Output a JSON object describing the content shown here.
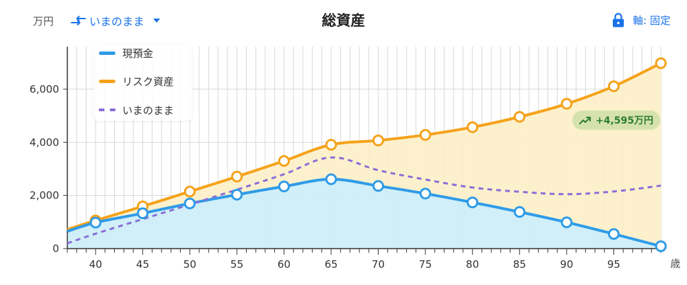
{
  "header": {
    "unit": "万円",
    "scenario_label": "いまのまま",
    "title": "総資産",
    "axis_label": "軸: 固定"
  },
  "badge": {
    "text": "+4,595万円"
  },
  "colors": {
    "cash": "#2f9be8",
    "cash_fill": "#cdeefa",
    "risk": "#f5a21b",
    "risk_fill": "#fdf0c8",
    "baseline": "#8a6ed8",
    "grid": "#d8d8d8",
    "accent": "#1a73e8",
    "badge_text": "#2e7d32"
  },
  "chart_data": {
    "type": "area",
    "xlabel": "歳",
    "ylabel": "",
    "xlim": [
      37,
      100
    ],
    "ylim": [
      0,
      7600
    ],
    "xticks": [
      40,
      45,
      50,
      55,
      60,
      65,
      70,
      75,
      80,
      85,
      90,
      95
    ],
    "yticks": [
      0,
      2000,
      4000,
      6000
    ],
    "ytick_labels": [
      "0",
      "2,000",
      "4,000",
      "6,000"
    ],
    "grid": true,
    "legend_position": "top-left",
    "series": [
      {
        "name": "現預金",
        "key": "cash",
        "x": [
          37,
          40,
          45,
          50,
          55,
          60,
          65,
          70,
          75,
          80,
          85,
          90,
          95,
          100
        ],
        "values": [
          650,
          980,
          1330,
          1700,
          2030,
          2340,
          2610,
          2360,
          2070,
          1740,
          1380,
          990,
          550,
          90
        ],
        "markers_at": [
          40,
          45,
          50,
          55,
          60,
          65,
          70,
          75,
          80,
          85,
          90,
          95,
          100
        ]
      },
      {
        "name": "リスク資産",
        "key": "risk",
        "x": [
          37,
          40,
          45,
          50,
          55,
          60,
          65,
          70,
          75,
          80,
          85,
          90,
          95,
          100
        ],
        "values": [
          720,
          1060,
          1590,
          2150,
          2710,
          3300,
          3910,
          4070,
          4280,
          4570,
          4960,
          5450,
          6110,
          6980
        ],
        "markers_at": [
          40,
          45,
          50,
          55,
          60,
          65,
          70,
          75,
          80,
          85,
          90,
          95,
          100
        ]
      },
      {
        "name": "いまのまま",
        "key": "baseline",
        "x": [
          37,
          40,
          45,
          50,
          55,
          60,
          65,
          70,
          75,
          80,
          85,
          90,
          95,
          100
        ],
        "values": [
          200,
          560,
          1110,
          1660,
          2220,
          2800,
          3430,
          2950,
          2600,
          2300,
          2140,
          2050,
          2150,
          2370
        ],
        "markers_at": []
      }
    ]
  }
}
